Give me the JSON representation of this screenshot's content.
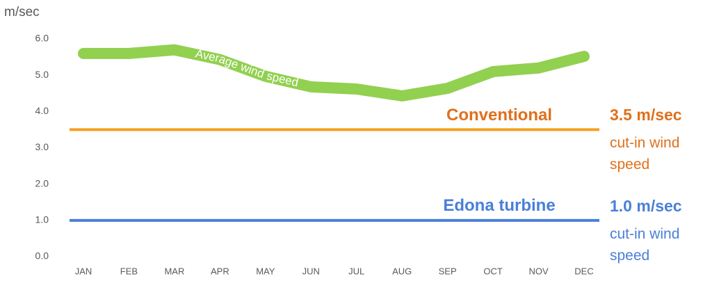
{
  "chart_data": {
    "type": "line",
    "y_label": "m/sec",
    "categories": [
      "JAN",
      "FEB",
      "MAR",
      "APR",
      "MAY",
      "JUN",
      "JUL",
      "AUG",
      "SEP",
      "OCT",
      "NOV",
      "DEC"
    ],
    "series": [
      {
        "name": "Average wind speed",
        "color": "#92d050",
        "values": [
          5.6,
          5.6,
          5.7,
          5.43,
          4.97,
          4.68,
          4.62,
          4.43,
          4.64,
          5.1,
          5.2,
          5.52
        ]
      }
    ],
    "ylim": [
      0,
      6
    ],
    "yticks": [
      {
        "value": 0,
        "label": "0.0"
      },
      {
        "value": 1,
        "label": "1.0"
      },
      {
        "value": 2,
        "label": "2.0"
      },
      {
        "value": 3,
        "label": "3.0"
      },
      {
        "value": 4,
        "label": "4.0"
      },
      {
        "value": 5,
        "label": "5.0"
      },
      {
        "value": 6,
        "label": "6.0"
      }
    ],
    "reference_lines": [
      {
        "name": "Conventional",
        "value": 3.5,
        "value_label": "3.5 m/sec",
        "note": "cut-in wind speed",
        "color": "#f5a01e",
        "text_color": "#e0701c"
      },
      {
        "name": "Edona turbine",
        "value": 1.0,
        "value_label": "1.0 m/sec",
        "note": "cut-in wind speed",
        "color": "#4a7fd8",
        "text_color": "#4a7fd8"
      }
    ]
  }
}
